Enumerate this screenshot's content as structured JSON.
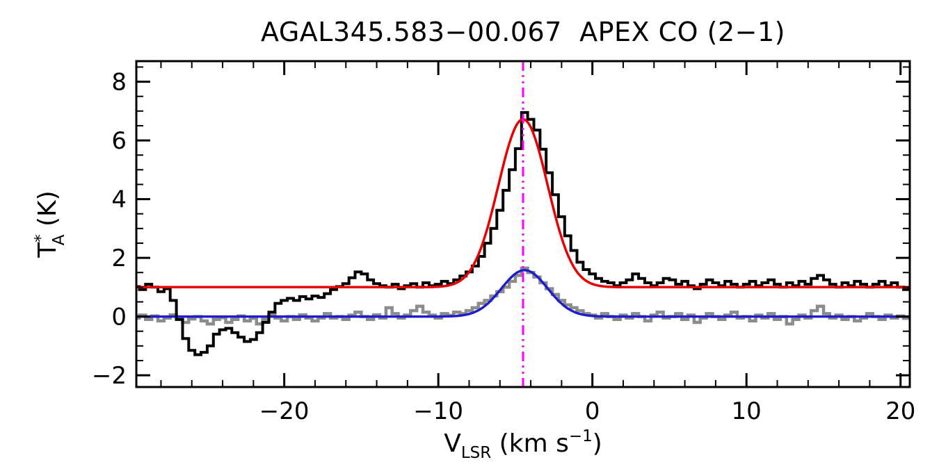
{
  "chart_data": {
    "type": "line",
    "title": "AGAL345.583−00.067  APEX CO (2−1)",
    "xlabel": {
      "v": "V",
      "sub": "LSR",
      "mid": " (km s",
      "sup": "−1",
      "close": ")"
    },
    "ylabel": {
      "t": "T",
      "sup": "*",
      "sub": "A",
      "post": " (K)"
    },
    "xlim": [
      -29.6,
      20.6
    ],
    "ylim": [
      -2.4,
      8.7
    ],
    "xticks": [
      -20,
      -10,
      0,
      10,
      20
    ],
    "xtick_labels": [
      "−20",
      "−10",
      "0",
      "10",
      "20"
    ],
    "x_minor_step": 2,
    "yticks": [
      -2,
      0,
      2,
      4,
      6,
      8
    ],
    "ytick_labels": [
      "−2",
      "0",
      "2",
      "4",
      "6",
      "8"
    ],
    "y_minor_step": 0.5,
    "grid": false,
    "legend": "none",
    "x_start": -29.6,
    "channel_width": 0.4,
    "series": [
      {
        "name": "observed-co-spectrum",
        "style": "histogram",
        "color": "#000000",
        "line_width": 4,
        "values": [
          1.02,
          0.92,
          1.1,
          1.0,
          0.85,
          0.95,
          0.55,
          -0.1,
          -0.75,
          -1.15,
          -1.3,
          -1.22,
          -1.0,
          -0.6,
          -0.45,
          -0.4,
          -0.55,
          -0.7,
          -0.85,
          -0.78,
          -0.55,
          -0.2,
          0.15,
          0.45,
          0.55,
          0.62,
          0.55,
          0.68,
          0.6,
          0.7,
          0.65,
          0.78,
          0.92,
          1.02,
          1.12,
          1.32,
          1.52,
          1.45,
          1.25,
          1.12,
          1.05,
          1.0,
          1.1,
          0.95,
          1.05,
          1.12,
          1.0,
          1.15,
          1.05,
          1.1,
          1.2,
          1.12,
          1.25,
          1.38,
          1.52,
          1.72,
          2.05,
          2.5,
          3.0,
          3.62,
          4.3,
          5.0,
          5.72,
          6.95,
          6.72,
          6.35,
          5.7,
          4.9,
          4.15,
          3.4,
          2.75,
          2.25,
          1.85,
          1.6,
          1.45,
          1.3,
          1.2,
          1.15,
          1.05,
          1.15,
          1.25,
          1.45,
          1.3,
          1.15,
          1.05,
          1.15,
          1.3,
          1.25,
          1.1,
          1.2,
          1.05,
          0.95,
          1.1,
          1.25,
          1.15,
          1.05,
          1.2,
          1.1,
          1.0,
          1.1,
          1.2,
          1.05,
          1.15,
          1.25,
          1.1,
          1.0,
          1.15,
          1.05,
          1.2,
          1.1,
          1.3,
          1.4,
          1.25,
          1.1,
          1.0,
          1.15,
          1.05,
          1.2,
          1.1,
          1.0,
          1.1,
          1.2,
          1.05,
          1.15,
          1.0,
          0.92
        ]
      },
      {
        "name": "secondary-co-spectrum",
        "style": "histogram",
        "color": "#8c8c8c",
        "line_width": 4.5,
        "values": [
          -0.05,
          0.05,
          -0.1,
          0.02,
          -0.15,
          -0.05,
          0.06,
          -0.1,
          -0.2,
          -0.08,
          0.0,
          -0.15,
          -0.25,
          -0.1,
          -0.04,
          -0.2,
          -0.1,
          0.02,
          -0.15,
          -0.06,
          -0.25,
          -0.1,
          0.05,
          -0.05,
          -0.15,
          0.0,
          -0.1,
          0.06,
          -0.05,
          -0.15,
          -0.05,
          0.1,
          -0.05,
          0.0,
          -0.1,
          0.05,
          0.15,
          0.0,
          -0.1,
          0.06,
          -0.05,
          0.3,
          0.1,
          -0.05,
          0.05,
          0.2,
          0.35,
          0.15,
          0.05,
          -0.05,
          0.1,
          0.04,
          0.15,
          0.1,
          0.2,
          0.3,
          0.45,
          0.55,
          0.7,
          0.85,
          1.0,
          1.2,
          1.4,
          1.65,
          1.5,
          1.35,
          1.15,
          0.95,
          0.75,
          0.55,
          0.4,
          0.3,
          0.2,
          0.1,
          0.05,
          -0.05,
          0.1,
          0.0,
          -0.1,
          0.05,
          -0.05,
          0.1,
          0.0,
          -0.15,
          0.05,
          0.15,
          -0.05,
          0.0,
          0.1,
          -0.1,
          0.05,
          -0.2,
          -0.05,
          0.1,
          0.0,
          -0.1,
          0.05,
          0.15,
          -0.05,
          0.0,
          -0.15,
          0.05,
          -0.05,
          0.1,
          -0.1,
          0.0,
          -0.25,
          -0.1,
          0.05,
          -0.05,
          0.2,
          0.35,
          0.1,
          -0.05,
          0.05,
          -0.1,
          0.0,
          -0.15,
          -0.05,
          0.1,
          0.0,
          -0.1,
          0.05,
          -0.05,
          0.02,
          -0.06
        ]
      }
    ],
    "fits": [
      {
        "name": "gaussian-fit-main",
        "color": "#e60000",
        "baseline": 1.0,
        "amplitude": 5.72,
        "center": -4.5,
        "sigma": 1.6,
        "line_width": 3.5
      },
      {
        "name": "gaussian-fit-secondary",
        "color": "#1d1dcc",
        "baseline": 0.0,
        "amplitude": 1.58,
        "center": -4.4,
        "sigma": 1.5,
        "line_width": 3.5
      }
    ],
    "vline": {
      "x": -4.5,
      "color": "#ff00ff",
      "style": "dash-dot",
      "line_width": 3
    }
  }
}
